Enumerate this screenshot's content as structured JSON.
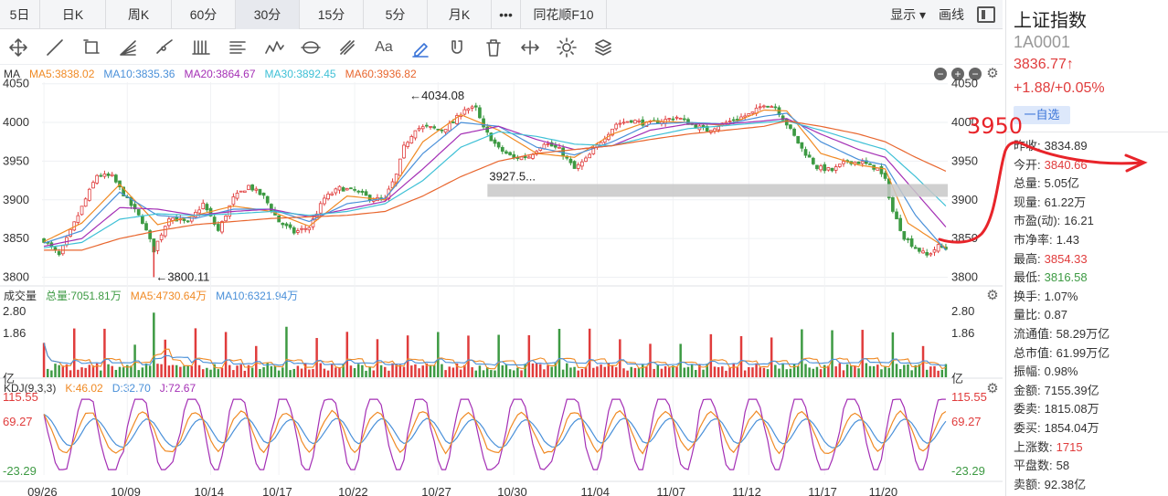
{
  "tabs": [
    "5日",
    "日K",
    "周K",
    "60分",
    "30分",
    "15分",
    "5分",
    "月K",
    "•••",
    "同花顺F10"
  ],
  "active_tab": "30分",
  "topbar_right": {
    "display": "显示",
    "draw": "画线"
  },
  "tool_icons": [
    "move-icon",
    "line-icon",
    "rectangle-icon",
    "fan-icon",
    "ray-icon",
    "channel-icon",
    "fib-icon",
    "wave-icon",
    "cycle-icon",
    "gann-icon",
    "text-icon",
    "pen-icon",
    "magnet-icon",
    "trash-icon",
    "stretch-icon",
    "settings-icon",
    "layers-icon"
  ],
  "tool_text": {
    "text-icon": "Aa"
  },
  "colors": {
    "up": "#e03c3c",
    "down": "#3d9a43",
    "ma5": "#f08a24",
    "ma10": "#4a90d9",
    "ma20": "#a42fb5",
    "ma30": "#3ec0d6",
    "ma60": "#e8662e",
    "k": "#f08a24",
    "d": "#4a90d9",
    "j": "#a42fb5",
    "annot": "#e8242a"
  },
  "ma_legend": {
    "name": "MA",
    "ma5": "MA5:3838.02",
    "ma10": "MA10:3835.36",
    "ma20": "MA20:3864.67",
    "ma30": "MA30:3892.45",
    "ma60": "MA60:3936.82"
  },
  "vol_legend": {
    "name": "成交量",
    "total": "总量:7051.81万",
    "ma5": "MA5:4730.64万",
    "ma10": "MA10:6321.94万"
  },
  "kdj_legend": {
    "name": "KDJ(9,3,3)",
    "k": "K:46.02",
    "d": "D:32.70",
    "j": "J:72.67"
  },
  "sidebar": {
    "name": "上证指数",
    "code": "1A0001",
    "price": "3836.77↑",
    "change": "+1.88/+0.05%",
    "fav": "一自选",
    "stats": [
      {
        "label": "昨收:",
        "value": "3834.89",
        "cls": ""
      },
      {
        "label": "今开:",
        "value": "3840.66",
        "cls": "up"
      },
      {
        "label": "总量:",
        "value": "5.05亿",
        "cls": ""
      },
      {
        "label": "现量:",
        "value": "61.22万",
        "cls": ""
      },
      {
        "label": "市盈(动):",
        "value": "16.21",
        "cls": ""
      },
      {
        "label": "市净率:",
        "value": "1.43",
        "cls": ""
      },
      {
        "label": "最高:",
        "value": "3854.33",
        "cls": "up"
      },
      {
        "label": "最低:",
        "value": "3816.58",
        "cls": "down"
      },
      {
        "label": "换手:",
        "value": "1.07%",
        "cls": ""
      },
      {
        "label": "量比:",
        "value": "0.87",
        "cls": ""
      },
      {
        "label": "流通值:",
        "value": "58.29万亿",
        "cls": ""
      },
      {
        "label": "总市值:",
        "value": "61.99万亿",
        "cls": ""
      },
      {
        "label": "振幅:",
        "value": "0.98%",
        "cls": ""
      },
      {
        "label": "金额:",
        "value": "7155.39亿",
        "cls": ""
      },
      {
        "label": "委卖:",
        "value": "1815.08万",
        "cls": ""
      },
      {
        "label": "委买:",
        "value": "1854.04万",
        "cls": ""
      },
      {
        "label": "上涨数:",
        "value": "1715",
        "cls": "up"
      },
      {
        "label": "平盘数:",
        "value": "58",
        "cls": ""
      },
      {
        "label": "卖额:",
        "value": "92.38亿",
        "cls": ""
      }
    ]
  },
  "handwritten_annotation": "3950",
  "chart_data": [
    {
      "type": "candlestick",
      "name": "price",
      "ylim": [
        3790,
        4052
      ],
      "y_ticks": [
        "4050",
        "4000",
        "3950",
        "3900",
        "3850",
        "3800"
      ],
      "x_dates": [
        "09/26",
        "10/09",
        "10/14",
        "10/17",
        "10/22",
        "10/27",
        "10/30",
        "11/04",
        "11/07",
        "11/12",
        "11/17",
        "11/20"
      ],
      "annotations": [
        {
          "text": "←4034.08",
          "value": 4034.08,
          "bar": 96
        },
        {
          "text": "←3800.11",
          "value": 3800.11,
          "bar": 29
        },
        {
          "text": "3927.5...",
          "value": 3927.5,
          "bar": 118
        }
      ],
      "close_path": [
        [
          0,
          3848
        ],
        [
          4,
          3828
        ],
        [
          9,
          3880
        ],
        [
          14,
          3932
        ],
        [
          18,
          3930
        ],
        [
          22,
          3900
        ],
        [
          26,
          3872
        ],
        [
          29,
          3835
        ],
        [
          33,
          3878
        ],
        [
          38,
          3870
        ],
        [
          42,
          3895
        ],
        [
          46,
          3860
        ],
        [
          50,
          3902
        ],
        [
          54,
          3918
        ],
        [
          58,
          3904
        ],
        [
          62,
          3872
        ],
        [
          66,
          3858
        ],
        [
          70,
          3865
        ],
        [
          74,
          3902
        ],
        [
          78,
          3915
        ],
        [
          82,
          3912
        ],
        [
          86,
          3902
        ],
        [
          90,
          3900
        ],
        [
          91,
          3912
        ],
        [
          93,
          3932
        ],
        [
          95,
          3968
        ],
        [
          98,
          3992
        ],
        [
          101,
          3994
        ],
        [
          105,
          3990
        ],
        [
          108,
          4000
        ],
        [
          111,
          4018
        ],
        [
          114,
          4018
        ],
        [
          116,
          3992
        ],
        [
          120,
          3966
        ],
        [
          124,
          3954
        ],
        [
          128,
          3956
        ],
        [
          132,
          3974
        ],
        [
          136,
          3965
        ],
        [
          140,
          3940
        ],
        [
          143,
          3952
        ],
        [
          147,
          3976
        ],
        [
          151,
          3998
        ],
        [
          155,
          4003
        ],
        [
          159,
          3998
        ],
        [
          163,
          4002
        ],
        [
          167,
          4007
        ],
        [
          171,
          3997
        ],
        [
          175,
          3990
        ],
        [
          179,
          3998
        ],
        [
          183,
          4005
        ],
        [
          187,
          4012
        ],
        [
          190,
          4024
        ],
        [
          193,
          4020
        ],
        [
          196,
          3998
        ],
        [
          200,
          3966
        ],
        [
          204,
          3942
        ],
        [
          208,
          3938
        ],
        [
          212,
          3950
        ],
        [
          216,
          3948
        ],
        [
          220,
          3940
        ],
        [
          222,
          3925
        ],
        [
          224,
          3885
        ],
        [
          227,
          3852
        ],
        [
          230,
          3838
        ],
        [
          233,
          3828
        ],
        [
          236,
          3840
        ],
        [
          238,
          3836.77
        ]
      ],
      "ma_paths": {
        "MA5": [
          [
            0,
            3846
          ],
          [
            10,
            3870
          ],
          [
            20,
            3920
          ],
          [
            30,
            3868
          ],
          [
            40,
            3880
          ],
          [
            50,
            3892
          ],
          [
            60,
            3885
          ],
          [
            70,
            3866
          ],
          [
            80,
            3905
          ],
          [
            90,
            3900
          ],
          [
            100,
            3975
          ],
          [
            110,
            4010
          ],
          [
            120,
            3990
          ],
          [
            130,
            3960
          ],
          [
            140,
            3955
          ],
          [
            150,
            3985
          ],
          [
            160,
            4002
          ],
          [
            170,
            4000
          ],
          [
            180,
            3996
          ],
          [
            190,
            4016
          ],
          [
            196,
            4015
          ],
          [
            205,
            3960
          ],
          [
            215,
            3945
          ],
          [
            222,
            3940
          ],
          [
            228,
            3870
          ],
          [
            238,
            3838
          ]
        ],
        "MA10": [
          [
            0,
            3844
          ],
          [
            10,
            3860
          ],
          [
            20,
            3910
          ],
          [
            30,
            3880
          ],
          [
            40,
            3876
          ],
          [
            50,
            3888
          ],
          [
            60,
            3888
          ],
          [
            70,
            3872
          ],
          [
            80,
            3895
          ],
          [
            90,
            3902
          ],
          [
            100,
            3960
          ],
          [
            110,
            4000
          ],
          [
            120,
            3995
          ],
          [
            130,
            3968
          ],
          [
            140,
            3958
          ],
          [
            150,
            3975
          ],
          [
            160,
            3998
          ],
          [
            170,
            4000
          ],
          [
            180,
            3998
          ],
          [
            190,
            4008
          ],
          [
            196,
            4012
          ],
          [
            205,
            3975
          ],
          [
            215,
            3952
          ],
          [
            222,
            3945
          ],
          [
            230,
            3880
          ],
          [
            238,
            3835
          ]
        ],
        "MA20": [
          [
            0,
            3840
          ],
          [
            10,
            3850
          ],
          [
            20,
            3890
          ],
          [
            30,
            3888
          ],
          [
            40,
            3880
          ],
          [
            50,
            3885
          ],
          [
            60,
            3888
          ],
          [
            70,
            3878
          ],
          [
            80,
            3888
          ],
          [
            90,
            3898
          ],
          [
            100,
            3940
          ],
          [
            110,
            3985
          ],
          [
            120,
            3995
          ],
          [
            130,
            3978
          ],
          [
            140,
            3965
          ],
          [
            150,
            3970
          ],
          [
            160,
            3990
          ],
          [
            170,
            3998
          ],
          [
            180,
            3998
          ],
          [
            190,
            4002
          ],
          [
            196,
            4005
          ],
          [
            205,
            3985
          ],
          [
            215,
            3965
          ],
          [
            222,
            3955
          ],
          [
            230,
            3910
          ],
          [
            238,
            3865
          ]
        ],
        "MA30": [
          [
            0,
            3838
          ],
          [
            10,
            3845
          ],
          [
            20,
            3875
          ],
          [
            30,
            3882
          ],
          [
            40,
            3880
          ],
          [
            50,
            3882
          ],
          [
            60,
            3885
          ],
          [
            70,
            3880
          ],
          [
            80,
            3885
          ],
          [
            90,
            3895
          ],
          [
            100,
            3925
          ],
          [
            110,
            3968
          ],
          [
            120,
            3988
          ],
          [
            130,
            3982
          ],
          [
            140,
            3972
          ],
          [
            150,
            3970
          ],
          [
            160,
            3982
          ],
          [
            170,
            3992
          ],
          [
            180,
            3996
          ],
          [
            190,
            4000
          ],
          [
            196,
            4002
          ],
          [
            205,
            3990
          ],
          [
            215,
            3975
          ],
          [
            222,
            3965
          ],
          [
            230,
            3930
          ],
          [
            238,
            3892
          ]
        ],
        "MA60": [
          [
            0,
            3835
          ],
          [
            10,
            3835
          ],
          [
            20,
            3850
          ],
          [
            30,
            3860
          ],
          [
            40,
            3868
          ],
          [
            50,
            3872
          ],
          [
            60,
            3876
          ],
          [
            70,
            3878
          ],
          [
            80,
            3880
          ],
          [
            90,
            3885
          ],
          [
            100,
            3905
          ],
          [
            110,
            3930
          ],
          [
            120,
            3950
          ],
          [
            130,
            3960
          ],
          [
            140,
            3965
          ],
          [
            150,
            3970
          ],
          [
            160,
            3978
          ],
          [
            170,
            3985
          ],
          [
            180,
            3990
          ],
          [
            190,
            3995
          ],
          [
            196,
            4002
          ],
          [
            205,
            3995
          ],
          [
            215,
            3985
          ],
          [
            222,
            3975
          ],
          [
            230,
            3955
          ],
          [
            238,
            3937
          ]
        ]
      }
    },
    {
      "type": "bar",
      "name": "volume",
      "ylim": [
        0,
        2.8
      ],
      "y_ticks": [
        "2.80",
        "1.86",
        "亿"
      ],
      "unit": "亿",
      "base_level": 0.55,
      "spike_level": 1.75,
      "spike_every": 8
    },
    {
      "type": "line",
      "name": "KDJ",
      "ylim": [
        -23.29,
        115.55
      ],
      "y_ticks": [
        "115.55",
        "69.27",
        "-23.29"
      ],
      "series_keys": [
        "K",
        "D",
        "J"
      ],
      "cycle_peaks_bars": [
        12,
        26,
        40,
        52,
        64,
        76,
        88,
        100,
        112,
        126,
        140,
        152,
        164,
        176,
        188,
        200,
        214,
        226,
        238
      ]
    }
  ]
}
